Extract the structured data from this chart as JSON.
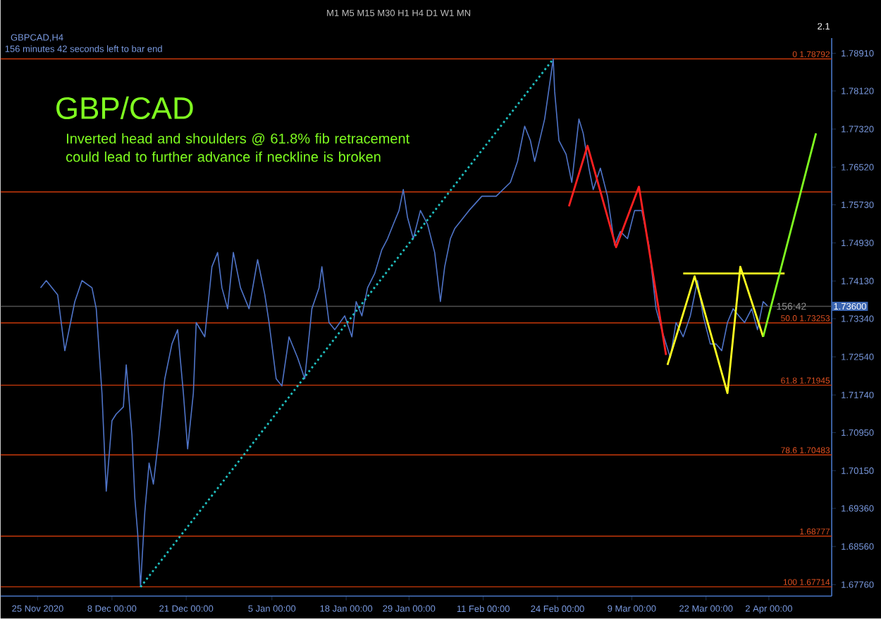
{
  "chart_data": {
    "type": "line",
    "title": "GBP/CAD",
    "subtitle": "Inverted head and shoulders @ 61.8% fib retracement could lead to further advance if neckline is broken",
    "xlim": [
      "2020-11-18T12:00",
      "2021-04-13"
    ],
    "ylim": [
      1.6752,
      1.7923
    ],
    "xticks": [
      {
        "value": "2020-11-25",
        "label": "25 Nov 2020"
      },
      {
        "value": "2020-12-08",
        "label": "8 Dec 00:00"
      },
      {
        "value": "2020-12-21",
        "label": "21 Dec 00:00"
      },
      {
        "value": "2021-01-05",
        "label": "5 Jan 00:00"
      },
      {
        "value": "2021-01-18",
        "label": "18 Jan 00:00"
      },
      {
        "value": "2021-01-29",
        "label": "29 Jan 00:00"
      },
      {
        "value": "2021-02-11",
        "label": "11 Feb 00:00"
      },
      {
        "value": "2021-02-24",
        "label": "24 Feb 00:00"
      },
      {
        "value": "2021-03-09",
        "label": "9 Mar 00:00"
      },
      {
        "value": "2021-03-22",
        "label": "22 Mar 00:00"
      },
      {
        "value": "2021-04-02",
        "label": "2 Apr 00:00"
      }
    ],
    "yticks": [
      {
        "value": 1.7891,
        "label": "1.78910"
      },
      {
        "value": 1.7812,
        "label": "1.78120"
      },
      {
        "value": 1.7732,
        "label": "1.77320"
      },
      {
        "value": 1.7652,
        "label": "1.76520"
      },
      {
        "value": 1.7573,
        "label": "1.75730"
      },
      {
        "value": 1.7493,
        "label": "1.74930"
      },
      {
        "value": 1.7413,
        "label": "1.74130"
      },
      {
        "value": 1.7334,
        "label": "1.73340"
      },
      {
        "value": 1.7254,
        "label": "1.72540"
      },
      {
        "value": 1.7174,
        "label": "1.71740"
      },
      {
        "value": 1.7095,
        "label": "1.70950"
      },
      {
        "value": 1.7015,
        "label": "1.70150"
      },
      {
        "value": 1.6936,
        "label": "1.69360"
      },
      {
        "value": 1.6856,
        "label": "1.68560"
      },
      {
        "value": 1.6776,
        "label": "1.67760"
      }
    ],
    "series": [
      {
        "color": "#4f74c8",
        "x": [
          "2020-11-25T12:00",
          "2020-11-26T12:00",
          "2020-11-28T12:00",
          "2020-11-29T18:00",
          "2020-12-01T12:00",
          "2020-12-02T18:00",
          "2020-12-04T12:00",
          "2020-12-05T06:00",
          "2020-12-06T06:00",
          "2020-12-07T00:00",
          "2020-12-08T00:00",
          "2020-12-08T18:00",
          "2020-12-10T00:00",
          "2020-12-10T12:00",
          "2020-12-11T12:00",
          "2020-12-12T00:00",
          "2020-12-12T12:00",
          "2020-12-13T00:00",
          "2020-12-13T18:00",
          "2020-12-14T12:00",
          "2020-12-15T06:00",
          "2020-12-16T06:00",
          "2020-12-17T06:00",
          "2020-12-18T12:00",
          "2020-12-19T12:00",
          "2020-12-20T12:00",
          "2020-12-21T06:00",
          "2020-12-22T06:00",
          "2020-12-22T18:00",
          "2020-12-24T06:00",
          "2020-12-25T12:00",
          "2020-12-26T12:00",
          "2020-12-27T06:00",
          "2020-12-28T06:00",
          "2020-12-29T06:00",
          "2020-12-30T12:00",
          "2021-01-01T00:00",
          "2021-01-02T12:00",
          "2021-01-03T18:00",
          "2021-01-04T12:00",
          "2021-01-05T18:00",
          "2021-01-06T18:00",
          "2021-01-08T00:00",
          "2021-01-09T12:00",
          "2021-01-10T18:00",
          "2021-01-12T00:00",
          "2021-01-13T06:00",
          "2021-01-13T18:00",
          "2021-01-15T00:00",
          "2021-01-16T00:00",
          "2021-01-17T18:00",
          "2021-01-19T00:00",
          "2021-01-19T18:00",
          "2021-01-20T18:00",
          "2021-01-21T18:00",
          "2021-01-23T00:00",
          "2021-01-24T06:00",
          "2021-01-25T06:00",
          "2021-01-26T06:00",
          "2021-01-27T06:00",
          "2021-01-28T00:00",
          "2021-01-28T18:00",
          "2021-01-29T18:00",
          "2021-01-31T00:00",
          "2021-02-01T06:00",
          "2021-02-02T12:00",
          "2021-02-03T12:00",
          "2021-02-04T06:00",
          "2021-02-05T06:00",
          "2021-02-06T00:00",
          "2021-02-08T12:00",
          "2021-02-10T18:00",
          "2021-02-13T06:00",
          "2021-02-15T18:00",
          "2021-02-17T00:00",
          "2021-02-18T06:00",
          "2021-02-19T06:00",
          "2021-02-20T00:00",
          "2021-02-21T18:00",
          "2021-02-23T06:00",
          "2021-02-23T12:00",
          "2021-02-24T06:00",
          "2021-02-25T12:00",
          "2021-02-26T12:00",
          "2021-02-27T18:00",
          "2021-02-28T12:00",
          "2021-03-01T12:00",
          "2021-03-02T06:00",
          "2021-03-03T12:00",
          "2021-03-04T18:00",
          "2021-03-06T00:00",
          "2021-03-07T00:00",
          "2021-03-08T06:00",
          "2021-03-09T12:00",
          "2021-03-10T18:00",
          "2021-03-12T00:00",
          "2021-03-13T06:00",
          "2021-03-14T06:00",
          "2021-03-15T18:00",
          "2021-03-16T18:00",
          "2021-03-18T00:00",
          "2021-03-19T06:00",
          "2021-03-20T12:00",
          "2021-03-21T12:00",
          "2021-03-22T18:00",
          "2021-03-23T18:00",
          "2021-03-24T18:00",
          "2021-03-25T18:00",
          "2021-03-26T18:00",
          "2021-03-27T18:00",
          "2021-03-28T18:00",
          "2021-03-30T00:00",
          "2021-03-31T00:00",
          "2021-04-01T00:00",
          "2021-04-01T18:00"
        ],
        "values": [
          1.7399,
          1.7414,
          1.7384,
          1.7267,
          1.737,
          1.7414,
          1.7399,
          1.7355,
          1.7178,
          1.6972,
          1.712,
          1.7134,
          1.7149,
          1.7237,
          1.709,
          1.6958,
          1.6884,
          1.6772,
          1.6928,
          1.7031,
          1.6987,
          1.709,
          1.7208,
          1.7281,
          1.7311,
          1.7178,
          1.7061,
          1.7178,
          1.7326,
          1.7296,
          1.7443,
          1.7473,
          1.7399,
          1.7355,
          1.7473,
          1.7399,
          1.7355,
          1.7458,
          1.7385,
          1.7326,
          1.7208,
          1.7193,
          1.7296,
          1.7252,
          1.7208,
          1.7355,
          1.7399,
          1.7443,
          1.7326,
          1.7311,
          1.734,
          1.7296,
          1.737,
          1.734,
          1.7399,
          1.7429,
          1.7479,
          1.7502,
          1.7532,
          1.7561,
          1.7605,
          1.7546,
          1.7502,
          1.7561,
          1.7532,
          1.7473,
          1.737,
          1.7443,
          1.7502,
          1.7523,
          1.7561,
          1.7591,
          1.7591,
          1.762,
          1.7664,
          1.7738,
          1.7708,
          1.7664,
          1.7753,
          1.7879,
          1.7811,
          1.7708,
          1.7679,
          1.762,
          1.7753,
          1.7723,
          1.765,
          1.7605,
          1.765,
          1.7591,
          1.7488,
          1.7517,
          1.7502,
          1.7561,
          1.7561,
          1.7488,
          1.7355,
          1.7311,
          1.7252,
          1.7326,
          1.7296,
          1.734,
          1.7414,
          1.734,
          1.7281,
          1.7281,
          1.7267,
          1.7326,
          1.7355,
          1.734,
          1.7326,
          1.7355,
          1.7311,
          1.737,
          1.7361
        ]
      },
      {
        "color": "#20c0c0",
        "line_style": "dotted",
        "x": [
          "2020-12-13T00:00",
          "2021-02-23T06:00"
        ],
        "values": [
          1.6771,
          1.7879
        ]
      },
      {
        "color": "#ff2020",
        "x": [
          "2021-02-26T00:00",
          "2021-03-01T06:00",
          "2021-03-06T06:00",
          "2021-03-10T06:00",
          "2021-03-15T00:00"
        ],
        "values": [
          1.757,
          1.7697,
          1.7484,
          1.7611,
          1.7258
        ]
      },
      {
        "color": "#ffff20",
        "x": [
          "2021-03-15T06:00",
          "2021-03-20T00:00",
          "2021-03-25T18:00",
          "2021-03-28T00:00",
          "2021-04-01T00:00"
        ],
        "values": [
          1.7237,
          1.7423,
          1.7178,
          1.7443,
          1.7296
        ]
      },
      {
        "color": "#ffff20",
        "x": [
          "2021-03-18T00:00",
          "2021-04-04T18:00"
        ],
        "values": [
          1.7429,
          1.7429
        ]
      },
      {
        "color": "#80ff20",
        "x": [
          "2021-04-01T00:00",
          "2021-04-10T06:00"
        ],
        "values": [
          1.7296,
          1.7723
        ]
      }
    ],
    "ref_lines": [
      {
        "axis": "y",
        "value": 1.78792,
        "label": "0 1.78792",
        "color": "#c8380a"
      },
      {
        "axis": "y",
        "value": 1.76,
        "color": "#c8380a"
      },
      {
        "axis": "y",
        "value": 1.73253,
        "label": "50.0 1.73253",
        "color": "#c8380a"
      },
      {
        "axis": "y",
        "value": 1.71945,
        "label": "61.8 1.71945",
        "color": "#c8380a"
      },
      {
        "axis": "y",
        "value": 1.70483,
        "label": "78.6 1.70483",
        "color": "#c8380a"
      },
      {
        "axis": "y",
        "value": 1.68777,
        "label": "1.68777",
        "color": "#c8380a"
      },
      {
        "axis": "y",
        "value": 1.67714,
        "label": "100 1.67714",
        "color": "#c8380a"
      },
      {
        "axis": "y",
        "value": 1.736,
        "label": "1.73600",
        "color": "#505050"
      }
    ],
    "annotations": [
      "GBPCAD,H4",
      "156 minutes 42 seconds left to bar end",
      "2.1",
      "M1 M5 M15 M30 H1 H4 D1 W1 MN",
      {
        "text": "156:42",
        "x": "2021-04-03T00:00",
        "y": 1.736
      }
    ]
  }
}
